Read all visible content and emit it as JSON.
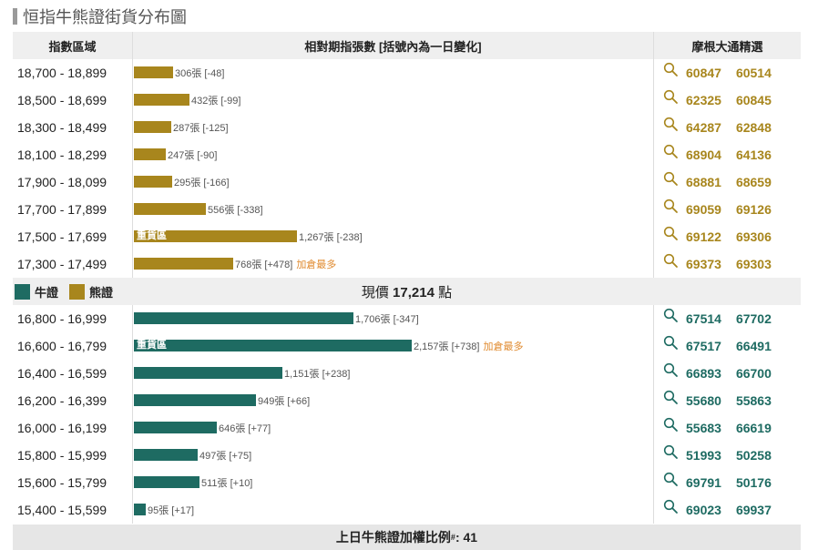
{
  "title": "恒指牛熊證街貨分布圖",
  "header": {
    "col_range": "指數區域",
    "col_bars": "相對期指張數 [括號內為一日變化]",
    "col_picks": "摩根大通精選"
  },
  "colors": {
    "bull": "#1e6b62",
    "bear": "#a8861d",
    "highlight": "#e08a2e",
    "zone_text": "#ffffff"
  },
  "legend": {
    "bull_label": "牛證",
    "bear_label": "熊證"
  },
  "current_price": {
    "prefix": "現價",
    "value": "17,214",
    "suffix": "點"
  },
  "footer": {
    "text": "上日牛熊證加權比例",
    "superscript": "#",
    "value": ": 41"
  },
  "chart_data": {
    "type": "bar",
    "orientation": "horizontal",
    "bear": [
      {
        "range": "18,700 - 18,899",
        "value": 306,
        "label": "306張 [-48]",
        "zone": "",
        "tag": "",
        "picks": [
          "60847",
          "60514"
        ]
      },
      {
        "range": "18,500 - 18,699",
        "value": 432,
        "label": "432張 [-99]",
        "zone": "",
        "tag": "",
        "picks": [
          "62325",
          "60845"
        ]
      },
      {
        "range": "18,300 - 18,499",
        "value": 287,
        "label": "287張 [-125]",
        "zone": "",
        "tag": "",
        "picks": [
          "64287",
          "62848"
        ]
      },
      {
        "range": "18,100 - 18,299",
        "value": 247,
        "label": "247張 [-90]",
        "zone": "",
        "tag": "",
        "picks": [
          "68904",
          "64136"
        ]
      },
      {
        "range": "17,900 - 18,099",
        "value": 295,
        "label": "295張 [-166]",
        "zone": "",
        "tag": "",
        "picks": [
          "68881",
          "68659"
        ]
      },
      {
        "range": "17,700 - 17,899",
        "value": 556,
        "label": "556張 [-338]",
        "zone": "",
        "tag": "",
        "picks": [
          "69059",
          "69126"
        ]
      },
      {
        "range": "17,500 - 17,699",
        "value": 1267,
        "label": "1,267張 [-238]",
        "zone": "重貨區",
        "tag": "",
        "picks": [
          "69122",
          "69306"
        ]
      },
      {
        "range": "17,300 - 17,499",
        "value": 768,
        "label": "768張 [+478]",
        "zone": "",
        "tag": "加倉最多",
        "picks": [
          "69373",
          "69303"
        ]
      }
    ],
    "bull": [
      {
        "range": "16,800 - 16,999",
        "value": 1706,
        "label": "1,706張 [-347]",
        "zone": "",
        "tag": "",
        "picks": [
          "67514",
          "67702"
        ]
      },
      {
        "range": "16,600 - 16,799",
        "value": 2157,
        "label": "2,157張 [+738]",
        "zone": "重貨區",
        "tag": "加倉最多",
        "picks": [
          "67517",
          "66491"
        ]
      },
      {
        "range": "16,400 - 16,599",
        "value": 1151,
        "label": "1,151張 [+238]",
        "zone": "",
        "tag": "",
        "picks": [
          "66893",
          "66700"
        ]
      },
      {
        "range": "16,200 - 16,399",
        "value": 949,
        "label": "949張 [+66]",
        "zone": "",
        "tag": "",
        "picks": [
          "55680",
          "55863"
        ]
      },
      {
        "range": "16,000 - 16,199",
        "value": 646,
        "label": "646張 [+77]",
        "zone": "",
        "tag": "",
        "picks": [
          "55683",
          "66619"
        ]
      },
      {
        "range": "15,800 - 15,999",
        "value": 497,
        "label": "497張 [+75]",
        "zone": "",
        "tag": "",
        "picks": [
          "51993",
          "50258"
        ]
      },
      {
        "range": "15,600 - 15,799",
        "value": 511,
        "label": "511張 [+10]",
        "zone": "",
        "tag": "",
        "picks": [
          "69791",
          "50176"
        ]
      },
      {
        "range": "15,400 - 15,599",
        "value": 95,
        "label": "95張 [+17]",
        "zone": "",
        "tag": "",
        "picks": [
          "69023",
          "69937"
        ]
      }
    ]
  }
}
